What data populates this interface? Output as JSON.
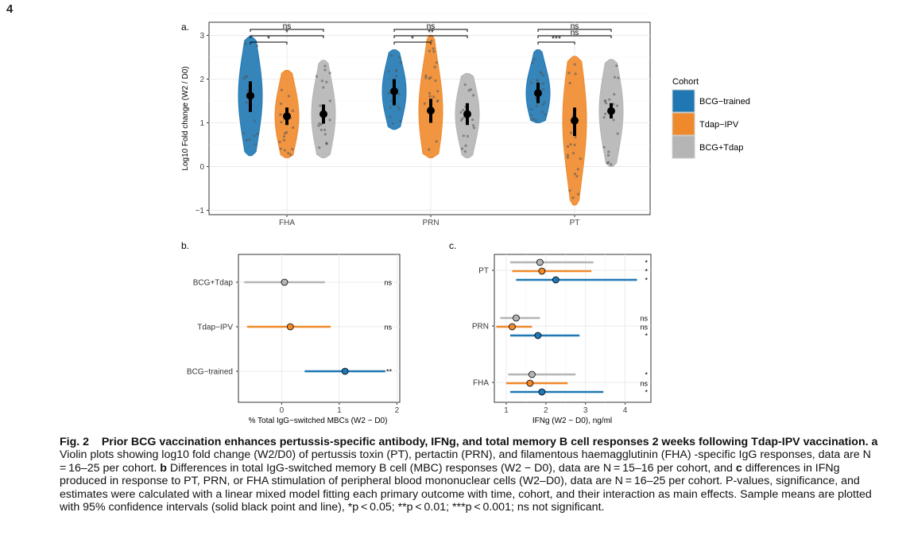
{
  "page_number": "4",
  "colors": {
    "bcg": "#1f78b4",
    "tdap": "#ef8a2c",
    "combo": "#b5b5b5",
    "ci": "#000000",
    "grid": "#ebebeb"
  },
  "panel_a": {
    "label": "a.",
    "ylabel": "Log10 Fold change (W2 / D0)",
    "legend_title": "Cohort",
    "legend": [
      "BCG−trained",
      "Tdap−IPV",
      "BCG+Tdap"
    ],
    "sig": [
      {
        "group": "FHA",
        "labels": [
          "ns",
          "*",
          "*"
        ]
      },
      {
        "group": "PRN",
        "labels": [
          "ns",
          "**",
          "*"
        ]
      },
      {
        "group": "PT",
        "labels": [
          "ns",
          "ns",
          "***"
        ]
      }
    ],
    "chart_data": {
      "type": "violin",
      "categories": [
        "FHA",
        "PRN",
        "PT"
      ],
      "ylim": [
        -1.1,
        3.3
      ],
      "yticks": [
        -1,
        0,
        1,
        2,
        3
      ],
      "series": [
        {
          "name": "BCG−trained",
          "means": [
            1.62,
            1.72,
            1.68
          ],
          "ci": [
            [
              1.25,
              1.95
            ],
            [
              1.4,
              2.0
            ],
            [
              1.45,
              1.92
            ]
          ],
          "range": [
            [
              0.25,
              2.97
            ],
            [
              0.85,
              2.67
            ],
            [
              1.0,
              2.67
            ]
          ]
        },
        {
          "name": "Tdap−IPV",
          "means": [
            1.15,
            1.28,
            1.05
          ],
          "ci": [
            [
              0.95,
              1.35
            ],
            [
              1.0,
              1.55
            ],
            [
              0.7,
              1.35
            ]
          ],
          "range": [
            [
              0.2,
              2.2
            ],
            [
              0.2,
              3.0
            ],
            [
              -0.88,
              2.52
            ]
          ]
        },
        {
          "name": "BCG+Tdap",
          "means": [
            1.2,
            1.2,
            1.27
          ],
          "ci": [
            [
              0.98,
              1.42
            ],
            [
              0.95,
              1.45
            ],
            [
              1.1,
              1.45
            ]
          ],
          "range": [
            [
              0.2,
              2.43
            ],
            [
              0.2,
              2.13
            ],
            [
              0.0,
              2.45
            ]
          ]
        }
      ]
    }
  },
  "panel_b": {
    "label": "b.",
    "xlabel": "% Total IgG−switched MBCs (W2 − D0)",
    "chart_data": {
      "type": "dot-interval",
      "categories": [
        "BCG+Tdap",
        "Tdap−IPV",
        "BCG−trained"
      ],
      "values": [
        0.05,
        0.15,
        1.1
      ],
      "ci": [
        [
          -0.65,
          0.75
        ],
        [
          -0.6,
          0.85
        ],
        [
          0.4,
          1.8
        ]
      ],
      "sig": [
        "ns",
        "ns",
        "**"
      ],
      "xlim": [
        -0.75,
        2.05
      ],
      "xticks": [
        0,
        1,
        2
      ]
    }
  },
  "panel_c": {
    "label": "c.",
    "xlabel": "IFNg (W2 − D0), ng/ml",
    "chart_data": {
      "type": "dot-interval",
      "categories": [
        "PT",
        "PRN",
        "FHA"
      ],
      "series": [
        {
          "name": "BCG+Tdap",
          "values": [
            1.85,
            1.25,
            1.65
          ],
          "ci": [
            [
              1.1,
              3.2
            ],
            [
              0.85,
              1.85
            ],
            [
              1.05,
              2.75
            ]
          ],
          "sig": [
            "*",
            "ns",
            "*"
          ]
        },
        {
          "name": "Tdap−IPV",
          "values": [
            1.9,
            1.15,
            1.6
          ],
          "ci": [
            [
              1.15,
              3.15
            ],
            [
              0.75,
              1.65
            ],
            [
              1.0,
              2.55
            ]
          ],
          "sig": [
            "*",
            "ns",
            "ns"
          ]
        },
        {
          "name": "BCG−trained",
          "values": [
            2.25,
            1.8,
            1.9
          ],
          "ci": [
            [
              1.25,
              4.3
            ],
            [
              1.1,
              2.85
            ],
            [
              1.1,
              3.45
            ]
          ],
          "sig": [
            "*",
            "*",
            "*"
          ]
        }
      ],
      "xlim": [
        0.7,
        4.65
      ],
      "xticks": [
        1,
        2,
        3,
        4
      ]
    }
  },
  "caption": {
    "fig": "Fig. 2",
    "title": "Prior BCG vaccination enhances pertussis-specific antibody, IFNg, and total memory B cell responses 2 weeks following Tdap-IPV vaccination.",
    "a_label": "a",
    "a_text": "Violin plots showing log10 fold change (W2/D0) of pertussis toxin (PT), pertactin (PRN), and filamentous haemagglutinin (FHA) -specific IgG responses, data are N = 16–25 per cohort.",
    "b_label": "b",
    "b_text": "Differences in total IgG-switched memory B cell (MBC) responses (W2 − D0), data are N = 15–16 per cohort, and",
    "c_label": "c",
    "c_text": "differences in IFNg produced in response to PT, PRN, or FHA stimulation of peripheral blood mononuclear cells (W2–D0), data are N = 16–25 per cohort. P-values, significance, and estimates were calculated with a linear mixed model fitting each primary outcome with time, cohort, and their interaction as main effects. Sample means are plotted with 95% confidence intervals (solid black point and line), *p < 0.05; **p < 0.01; ***p < 0.001; ns not significant."
  }
}
